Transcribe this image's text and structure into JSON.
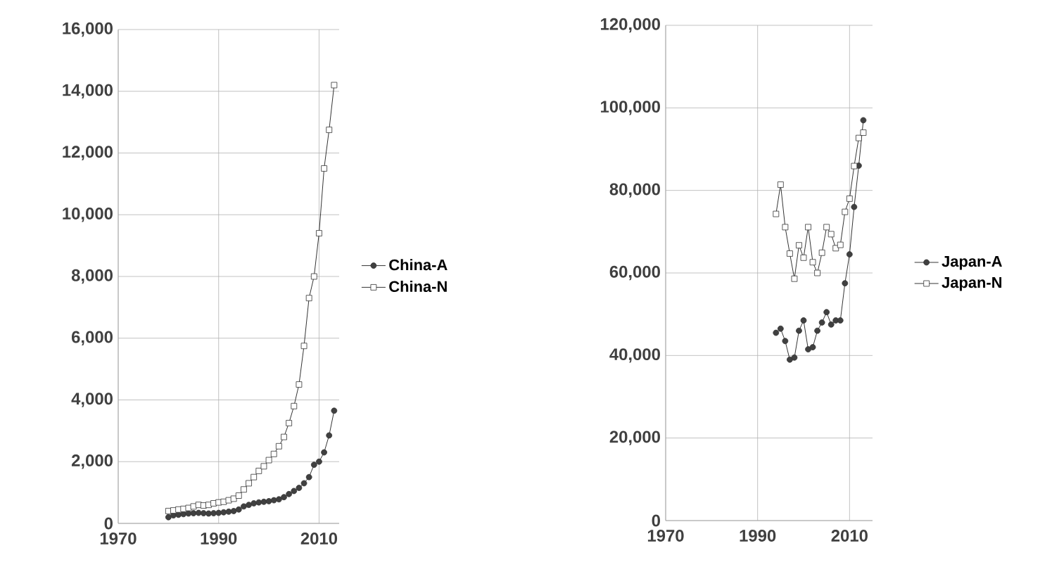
{
  "chart_data": [
    {
      "type": "line",
      "x": [
        1980,
        1981,
        1982,
        1983,
        1984,
        1985,
        1986,
        1987,
        1988,
        1989,
        1990,
        1991,
        1992,
        1993,
        1994,
        1995,
        1996,
        1997,
        1998,
        1999,
        2000,
        2001,
        2002,
        2003,
        2004,
        2005,
        2006,
        2007,
        2008,
        2009,
        2010,
        2011,
        2012,
        2013
      ],
      "series": [
        {
          "name": "China-A",
          "color": "#404040",
          "marker": "circle",
          "values": [
            200,
            260,
            280,
            300,
            320,
            330,
            340,
            330,
            320,
            330,
            340,
            360,
            380,
            400,
            450,
            550,
            600,
            650,
            680,
            700,
            720,
            750,
            780,
            850,
            950,
            1050,
            1150,
            1300,
            1500,
            1900,
            2000,
            2300,
            2850,
            3650
          ]
        },
        {
          "name": "China-N",
          "color": "#ffffff",
          "marker": "square",
          "values": [
            400,
            420,
            450,
            470,
            500,
            550,
            600,
            580,
            600,
            650,
            680,
            700,
            750,
            800,
            900,
            1100,
            1300,
            1500,
            1700,
            1850,
            2050,
            2250,
            2500,
            2800,
            3250,
            3800,
            4500,
            5750,
            7300,
            8000,
            9400,
            11500,
            12750,
            14200
          ]
        }
      ],
      "xlim": [
        1970,
        2014
      ],
      "xticks": [
        1970,
        1990,
        2010
      ],
      "ylim": [
        0,
        16000
      ],
      "yticks": [
        0,
        {
          "value": 2000,
          "label": "2,000"
        },
        {
          "value": 4000,
          "label": "4,000"
        },
        {
          "value": 6000,
          "label": "6,000"
        },
        {
          "value": 8000,
          "label": "8,000"
        },
        {
          "value": 10000,
          "label": "10,000"
        },
        {
          "value": 12000,
          "label": "12,000"
        },
        {
          "value": 14000,
          "label": "14,000"
        },
        {
          "value": 16000,
          "label": "16,000"
        }
      ],
      "grid": true,
      "legend": "right"
    },
    {
      "type": "line",
      "x": [
        1994,
        1995,
        1996,
        1997,
        1998,
        1999,
        2000,
        2001,
        2002,
        2003,
        2004,
        2005,
        2006,
        2007,
        2008,
        2009,
        2010,
        2011,
        2012,
        2013
      ],
      "series": [
        {
          "name": "Japan-A",
          "color": "#404040",
          "marker": "circle",
          "values": [
            45500,
            46500,
            43500,
            39000,
            39500,
            46000,
            48500,
            41500,
            42000,
            46000,
            48000,
            50500,
            47500,
            48500,
            48500,
            57500,
            64500,
            76000,
            86000,
            97000
          ]
        },
        {
          "name": "Japan-N",
          "color": "#ffffff",
          "marker": "square",
          "values": [
            74300,
            81400,
            71100,
            64700,
            58600,
            66700,
            63700,
            71100,
            62600,
            60000,
            64900,
            71100,
            69400,
            66000,
            66800,
            74800,
            78000,
            85900,
            92700,
            94000
          ]
        }
      ],
      "xlim": [
        1970,
        2015
      ],
      "xticks": [
        1970,
        1990,
        2010
      ],
      "ylim": [
        0,
        120000
      ],
      "yticks": [
        0,
        {
          "value": 20000,
          "label": "20,000"
        },
        {
          "value": 40000,
          "label": "40,000"
        },
        {
          "value": 60000,
          "label": "60,000"
        },
        {
          "value": 80000,
          "label": "80,000"
        },
        {
          "value": 100000,
          "label": "100,000"
        },
        {
          "value": 120000,
          "label": "120,000"
        }
      ],
      "grid": true,
      "legend": "right"
    }
  ]
}
